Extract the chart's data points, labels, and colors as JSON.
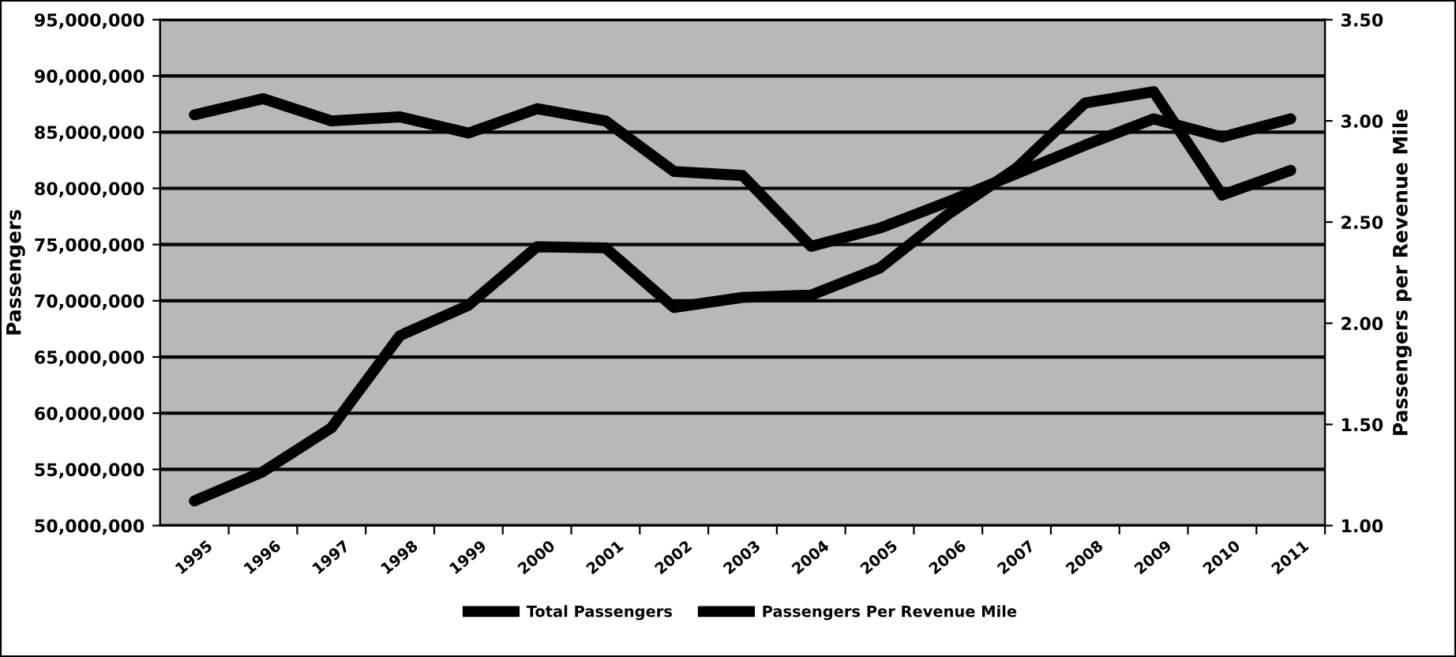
{
  "chart_data": {
    "type": "line",
    "categories": [
      "1995",
      "1996",
      "1997",
      "1998",
      "1999",
      "2000",
      "2001",
      "2002",
      "2003",
      "2004",
      "2005",
      "2006",
      "2007",
      "2008",
      "2009",
      "2010",
      "2011"
    ],
    "series": [
      {
        "name": "Total Passengers",
        "color": "#000000",
        "values": [
          52200000.0,
          54800000.0,
          58700000.0,
          66900000.0,
          69600000.0,
          74800000.0,
          74700000.0,
          69400000.0,
          70300000.0,
          70500000.0,
          72900000.0,
          77700000.0,
          81800000.0,
          87600000.0,
          88600000.0,
          79400000.0,
          81600000.0
        ]
      },
      {
        "name": "Passengers Per Revenue Mile",
        "color": "#000000",
        "axis": "y2",
        "values": [
          3.03,
          3.11,
          3.0,
          3.02,
          2.94,
          3.06,
          3.0,
          2.75,
          2.73,
          2.38,
          2.47,
          2.6,
          2.74,
          2.88,
          3.01,
          2.92,
          3.01
        ]
      }
    ],
    "ylabel": "Passengers",
    "y2label": "Passengers per Revenue Mile",
    "ylim": [
      50000000,
      95000000
    ],
    "yticks": [
      {
        "value": 50000000,
        "label": "50,000,000"
      },
      {
        "value": 55000000,
        "label": "55,000,000"
      },
      {
        "value": 60000000,
        "label": "60,000,000"
      },
      {
        "value": 65000000,
        "label": "65,000,000"
      },
      {
        "value": 70000000,
        "label": "70,000,000"
      },
      {
        "value": 75000000,
        "label": "75,000,000"
      },
      {
        "value": 80000000,
        "label": "80,000,000"
      },
      {
        "value": 85000000,
        "label": "85,000,000"
      },
      {
        "value": 90000000,
        "label": "90,000,000"
      },
      {
        "value": 95000000,
        "label": "95,000,000"
      }
    ],
    "y2lim": [
      1.0,
      3.5
    ],
    "y2ticks": [
      {
        "value": 1.0,
        "label": "1.00"
      },
      {
        "value": 1.5,
        "label": "1.50"
      },
      {
        "value": 2.0,
        "label": "2.00"
      },
      {
        "value": 2.5,
        "label": "2.50"
      },
      {
        "value": 3.0,
        "label": "3.00"
      },
      {
        "value": 3.5,
        "label": "3.50"
      }
    ],
    "grid": "y",
    "legend": "bottom",
    "marker": "none",
    "line_style": "solid"
  }
}
